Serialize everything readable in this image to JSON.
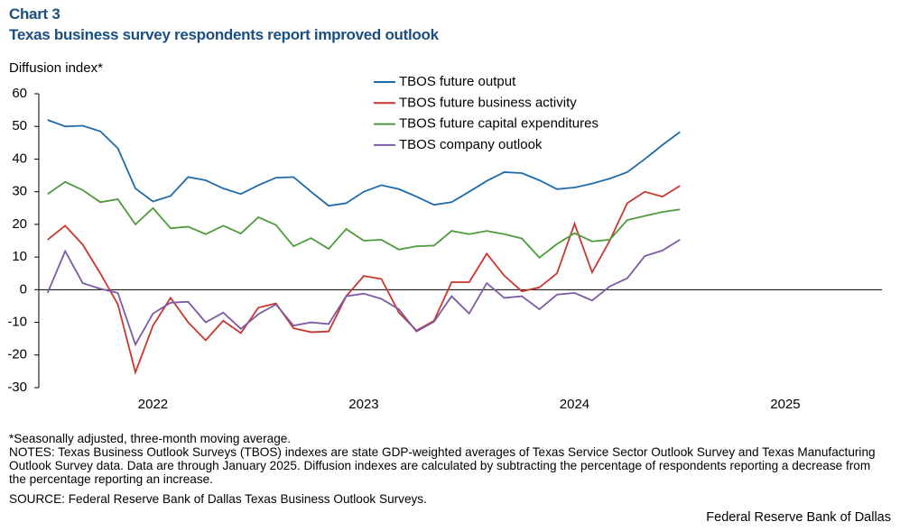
{
  "chart_data": {
    "type": "line",
    "chart_label": "Chart 3",
    "title": "Texas business survey respondents report improved outlook",
    "ylabel": "Diffusion index*",
    "x": [
      0,
      1,
      2,
      3,
      4,
      5,
      6,
      7,
      8,
      9,
      10,
      11,
      12,
      13,
      14,
      15,
      16,
      17,
      18,
      19,
      20,
      21,
      22,
      23,
      24,
      25,
      26,
      27,
      28,
      29,
      30,
      31,
      32,
      33,
      34,
      35,
      36
    ],
    "xlim": [
      -0.5,
      47.5
    ],
    "xticks": [
      {
        "value": 6,
        "label": "2022"
      },
      {
        "value": 18,
        "label": "2023"
      },
      {
        "value": 30,
        "label": "2024"
      },
      {
        "value": 42,
        "label": "2025"
      }
    ],
    "ylim": [
      -30,
      60
    ],
    "yticks": [
      -30,
      -20,
      -10,
      0,
      10,
      20,
      30,
      40,
      50,
      60
    ],
    "grid": false,
    "series": [
      {
        "name": "TBOS future output",
        "color": "#1f6aa8",
        "values": [
          52,
          50,
          50.2,
          48.5,
          43.3,
          31,
          27,
          28.7,
          34.5,
          33.5,
          31,
          29.3,
          32,
          34.3,
          34.5,
          30,
          25.7,
          26.5,
          30,
          32,
          30.8,
          28.5,
          26,
          26.8,
          30,
          33.3,
          36,
          35.7,
          33.5,
          30.8,
          31.3,
          32.5,
          34,
          36,
          40,
          44.3,
          48.3
        ]
      },
      {
        "name": "TBOS future business activity",
        "color": "#c8372d",
        "values": [
          15.3,
          19.6,
          13.8,
          5,
          -4.5,
          -25.3,
          -11,
          -2.5,
          -10,
          -15.5,
          -9.5,
          -13.3,
          -5.5,
          -4.2,
          -11.8,
          -13,
          -12.8,
          -2,
          4.2,
          3.3,
          -7,
          -12.5,
          -9.5,
          2.3,
          2.3,
          11,
          4.3,
          -0.5,
          0.7,
          5,
          20.2,
          5.3,
          15,
          26.5,
          30,
          28.5,
          31.8
        ]
      },
      {
        "name": "TBOS future capital expenditures",
        "color": "#4e9a3a",
        "values": [
          29.3,
          33,
          30.5,
          26.8,
          27.7,
          20,
          25,
          18.8,
          19.3,
          17,
          19.6,
          17.2,
          22.2,
          19.8,
          13.3,
          15.8,
          12.5,
          18.6,
          15,
          15.3,
          12.3,
          13.3,
          13.5,
          18,
          17,
          18,
          17,
          15.7,
          9.8,
          14,
          17.3,
          14.8,
          15.3,
          21.3,
          22.6,
          23.8,
          24.6
        ]
      },
      {
        "name": "TBOS company outlook",
        "color": "#7d5aa6",
        "values": [
          -1,
          11.8,
          2,
          0.3,
          -1,
          -16.8,
          -7.3,
          -4,
          -3.7,
          -10,
          -7,
          -12,
          -7.5,
          -4.5,
          -11,
          -10,
          -10.5,
          -2,
          -1.2,
          -2.8,
          -6,
          -12.8,
          -9.8,
          -2,
          -7.3,
          2,
          -2.5,
          -2,
          -6,
          -1.5,
          -1,
          -3.3,
          1,
          3.5,
          10.3,
          12,
          15.3
        ]
      }
    ],
    "footnote": "*Seasonally adjusted, three-month moving average.",
    "notes": "NOTES: Texas Business Outlook Surveys (TBOS) indexes are state GDP-weighted averages of Texas Service Sector Outlook Survey and Texas Manufacturing Outlook Survey data. Data are through January 2025. Diffusion indexes are calculated by subtracting the percentage of respondents reporting a decrease from the percentage reporting an increase.",
    "source": "SOURCE: Federal Reserve Bank of Dallas Texas Business Outlook Surveys.",
    "credit": "Federal Reserve Bank of Dallas"
  }
}
